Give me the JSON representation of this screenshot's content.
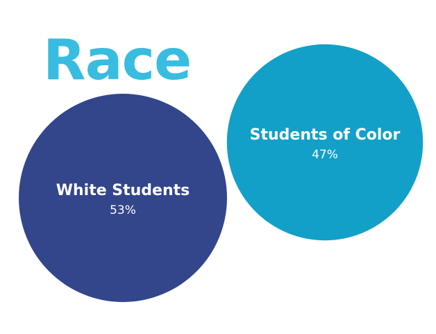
{
  "chart_data": {
    "type": "bubble",
    "title": "Race",
    "categories": [
      "White Students",
      "Students of Color"
    ],
    "values": [
      53,
      47
    ],
    "value_labels": [
      "53%",
      "47%"
    ],
    "colors": [
      "#33468c",
      "#13a0c8"
    ]
  }
}
